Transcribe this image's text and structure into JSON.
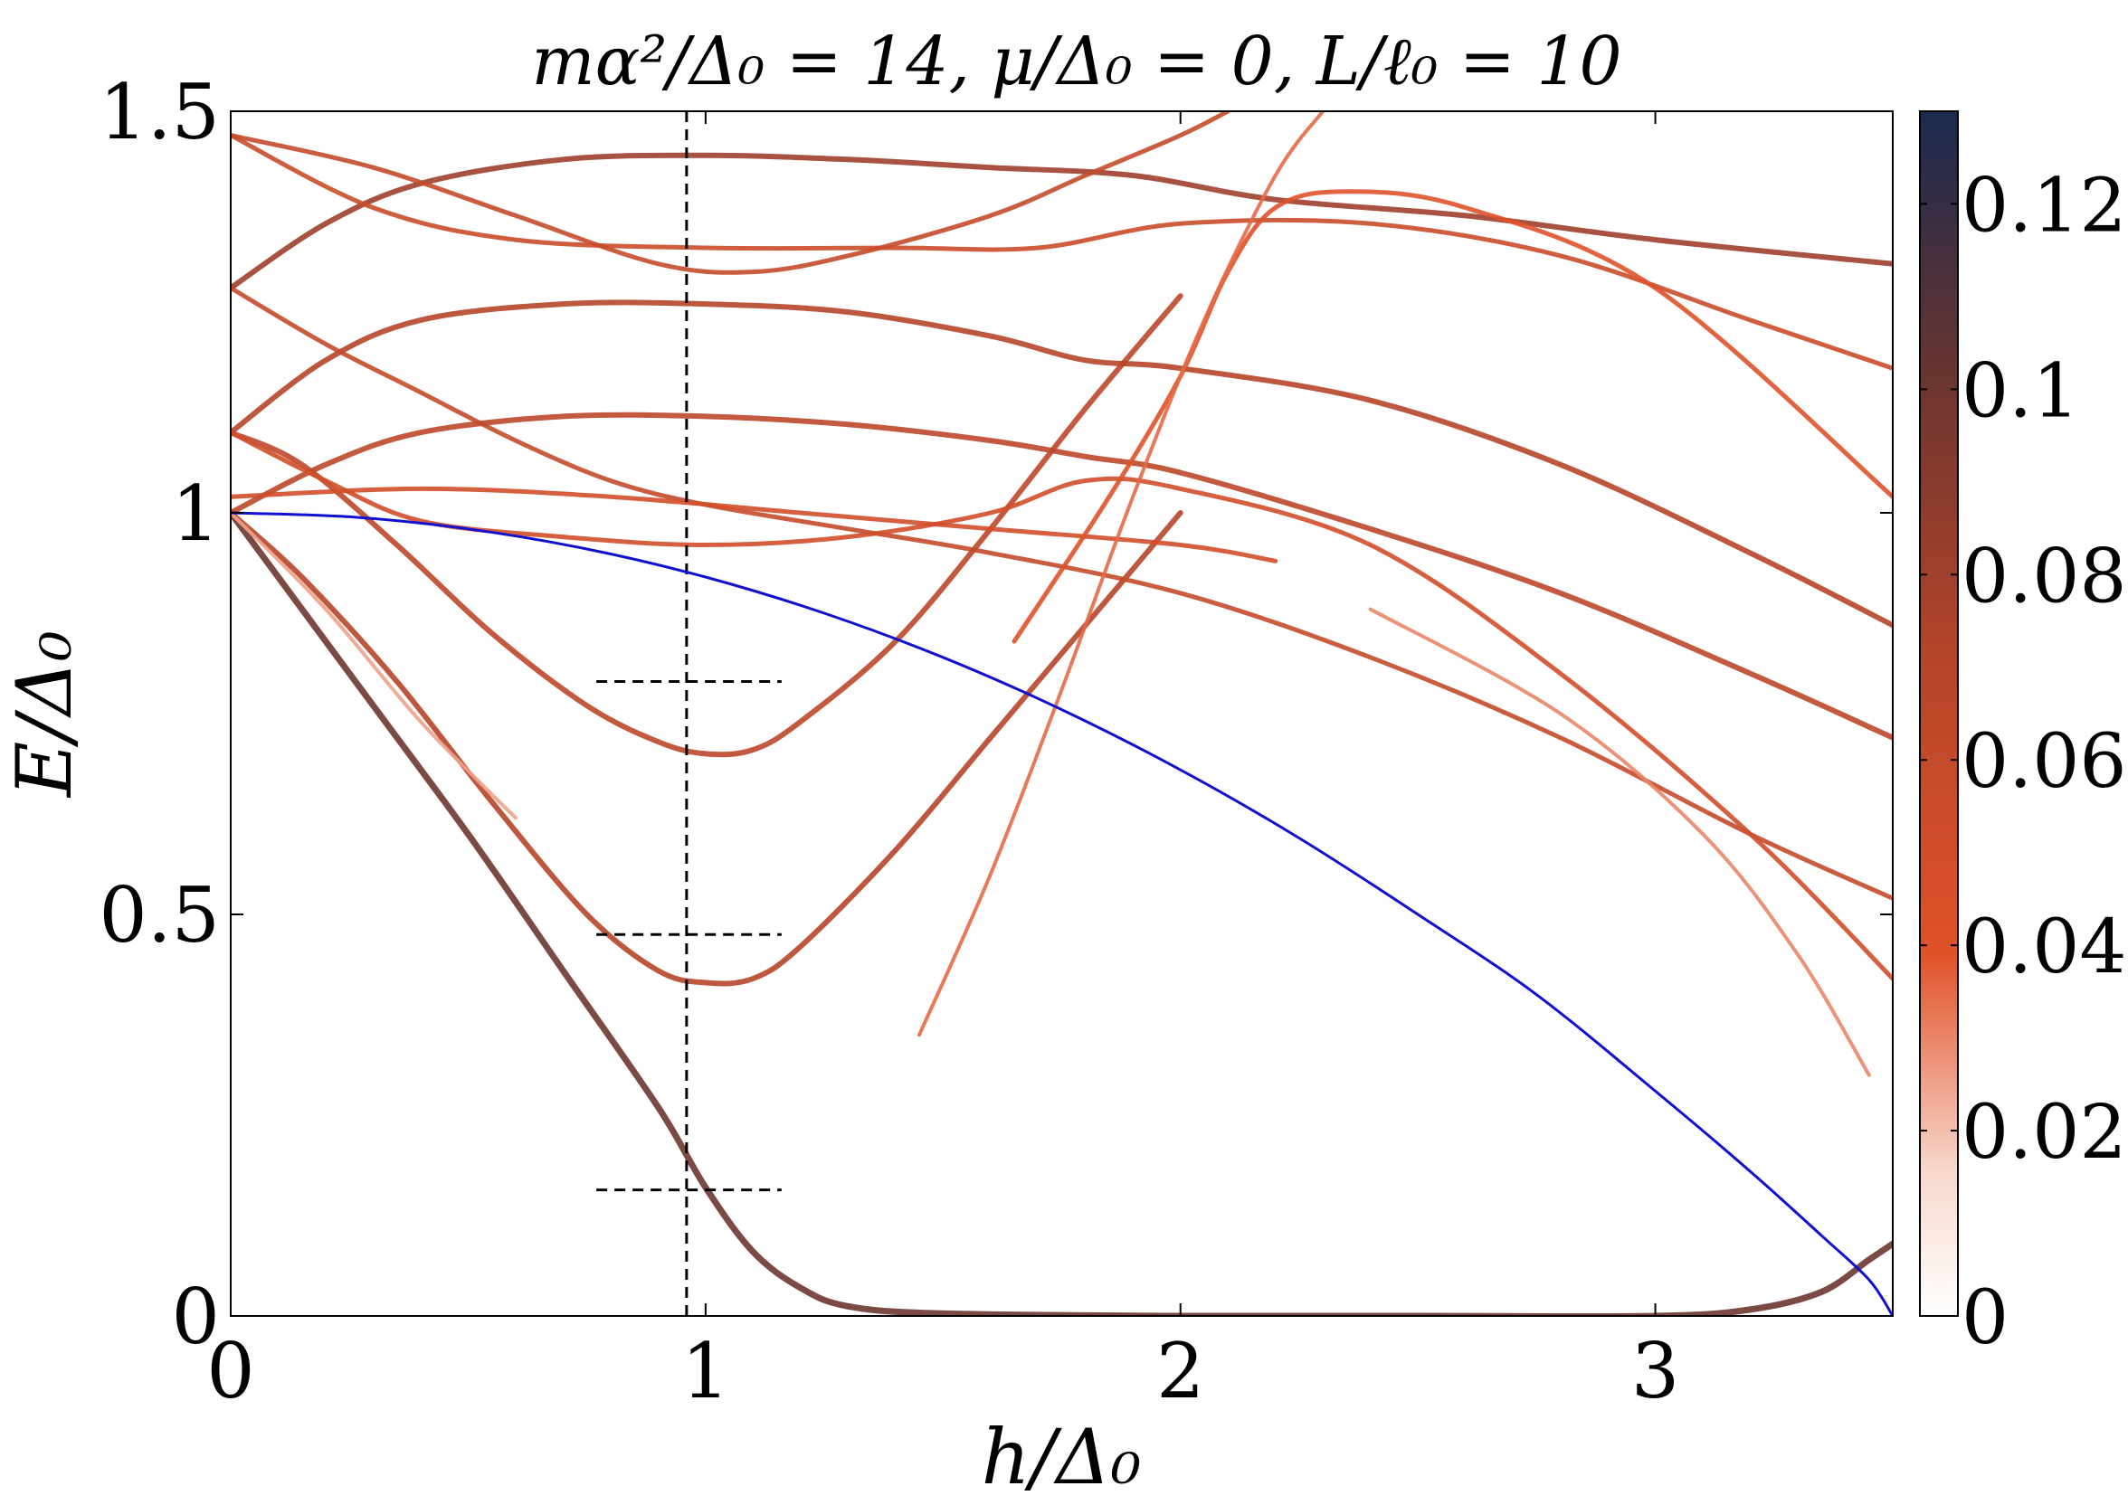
{
  "chart_data": {
    "type": "heatmap",
    "title": "mα²/Δ₀ = 14, μ/Δ₀ = 0, L/ℓ₀ = 10",
    "xlabel": "h/Δ₀",
    "ylabel": "E/Δ₀",
    "xlim": [
      0,
      3.5
    ],
    "ylim": [
      0,
      1.5
    ],
    "xticks": [
      {
        "value": 0,
        "label": "0"
      },
      {
        "value": 1,
        "label": "1"
      },
      {
        "value": 2,
        "label": "2"
      },
      {
        "value": 3,
        "label": "3"
      }
    ],
    "yticks": [
      {
        "value": 0,
        "label": "0"
      },
      {
        "value": 0.5,
        "label": "0.5"
      },
      {
        "value": 1,
        "label": "1"
      },
      {
        "value": 1.5,
        "label": "1.5"
      }
    ],
    "colorbar": {
      "min": 0,
      "max": 0.13,
      "ticks": [
        {
          "value": 0,
          "label": "0"
        },
        {
          "value": 0.02,
          "label": "0.02"
        },
        {
          "value": 0.04,
          "label": "0.04"
        },
        {
          "value": 0.06,
          "label": "0.06"
        },
        {
          "value": 0.08,
          "label": "0.08"
        },
        {
          "value": 0.1,
          "label": "0.1"
        },
        {
          "value": 0.12,
          "label": "0.12"
        }
      ],
      "colors": [
        "#ffffff",
        "#e0522a",
        "#1a2a4f"
      ]
    },
    "gap_curve": {
      "color": "#1010d0",
      "h_max": 3.5,
      "points": [
        [
          0,
          1.0
        ],
        [
          0.25,
          0.995
        ],
        [
          0.5,
          0.98
        ],
        [
          0.75,
          0.955
        ],
        [
          1.0,
          0.92
        ],
        [
          1.25,
          0.875
        ],
        [
          1.5,
          0.82
        ],
        [
          1.75,
          0.755
        ],
        [
          2.0,
          0.68
        ],
        [
          2.25,
          0.595
        ],
        [
          2.5,
          0.5
        ],
        [
          2.75,
          0.4
        ],
        [
          3.0,
          0.28
        ],
        [
          3.2,
          0.18
        ],
        [
          3.35,
          0.1
        ],
        [
          3.45,
          0.045
        ],
        [
          3.5,
          0.0
        ]
      ]
    },
    "reference_lines": {
      "vertical_x": 0.96,
      "horizontal": [
        {
          "y": 0.79,
          "x_from": 0.77,
          "x_to": 1.16
        },
        {
          "y": 0.475,
          "x_from": 0.77,
          "x_to": 1.16
        },
        {
          "y": 0.157,
          "x_from": 0.77,
          "x_to": 1.16
        }
      ]
    },
    "bands": [
      {
        "name": "b1",
        "intensity": 0.1,
        "width": 7,
        "points": [
          [
            0,
            1.0
          ],
          [
            0.1,
            0.92
          ],
          [
            0.3,
            0.76
          ],
          [
            0.5,
            0.6
          ],
          [
            0.7,
            0.43
          ],
          [
            0.9,
            0.26
          ],
          [
            1.0,
            0.16
          ],
          [
            1.1,
            0.08
          ],
          [
            1.2,
            0.035
          ],
          [
            1.3,
            0.012
          ],
          [
            1.5,
            0.003
          ],
          [
            2.0,
            0.0
          ],
          [
            2.5,
            0.0
          ],
          [
            3.0,
            0.0
          ],
          [
            3.2,
            0.008
          ],
          [
            3.35,
            0.03
          ],
          [
            3.45,
            0.07
          ],
          [
            3.5,
            0.09
          ]
        ]
      },
      {
        "name": "b2",
        "intensity": 0.07,
        "width": 6,
        "points": [
          [
            0,
            1.0
          ],
          [
            0.15,
            0.92
          ],
          [
            0.35,
            0.79
          ],
          [
            0.55,
            0.64
          ],
          [
            0.75,
            0.5
          ],
          [
            0.9,
            0.43
          ],
          [
            1.0,
            0.415
          ],
          [
            1.1,
            0.42
          ],
          [
            1.2,
            0.46
          ],
          [
            1.4,
            0.58
          ],
          [
            1.6,
            0.72
          ],
          [
            1.8,
            0.86
          ],
          [
            2.0,
            1.0
          ]
        ]
      },
      {
        "name": "b3",
        "intensity": 0.065,
        "width": 6,
        "points": [
          [
            0,
            1.1
          ],
          [
            0.15,
            1.06
          ],
          [
            0.35,
            0.96
          ],
          [
            0.55,
            0.85
          ],
          [
            0.75,
            0.76
          ],
          [
            0.9,
            0.715
          ],
          [
            1.0,
            0.7
          ],
          [
            1.1,
            0.705
          ],
          [
            1.2,
            0.74
          ],
          [
            1.4,
            0.84
          ],
          [
            1.6,
            0.98
          ],
          [
            1.8,
            1.13
          ],
          [
            2.0,
            1.27
          ]
        ]
      },
      {
        "name": "b4",
        "intensity": 0.065,
        "width": 6,
        "points": [
          [
            0,
            1.0
          ],
          [
            0.2,
            1.06
          ],
          [
            0.4,
            1.1
          ],
          [
            0.7,
            1.12
          ],
          [
            1.0,
            1.12
          ],
          [
            1.3,
            1.11
          ],
          [
            1.6,
            1.09
          ],
          [
            1.8,
            1.07
          ],
          [
            2.0,
            1.05
          ],
          [
            2.4,
            0.98
          ],
          [
            2.8,
            0.9
          ],
          [
            3.2,
            0.8
          ],
          [
            3.5,
            0.72
          ]
        ]
      },
      {
        "name": "b5",
        "intensity": 0.07,
        "width": 6,
        "points": [
          [
            0,
            1.1
          ],
          [
            0.2,
            1.19
          ],
          [
            0.4,
            1.24
          ],
          [
            0.7,
            1.26
          ],
          [
            1.0,
            1.26
          ],
          [
            1.3,
            1.25
          ],
          [
            1.6,
            1.22
          ],
          [
            1.8,
            1.19
          ],
          [
            2.0,
            1.18
          ],
          [
            2.4,
            1.14
          ],
          [
            2.8,
            1.06
          ],
          [
            3.2,
            0.95
          ],
          [
            3.5,
            0.86
          ]
        ]
      },
      {
        "name": "b6",
        "intensity": 0.08,
        "width": 6,
        "points": [
          [
            0,
            1.28
          ],
          [
            0.2,
            1.36
          ],
          [
            0.4,
            1.41
          ],
          [
            0.7,
            1.44
          ],
          [
            1.0,
            1.445
          ],
          [
            1.3,
            1.44
          ],
          [
            1.6,
            1.43
          ],
          [
            1.9,
            1.42
          ],
          [
            2.2,
            1.39
          ],
          [
            2.6,
            1.37
          ],
          [
            3.0,
            1.34
          ],
          [
            3.5,
            1.31
          ]
        ]
      },
      {
        "name": "b7",
        "intensity": 0.06,
        "width": 5,
        "points": [
          [
            0,
            1.47
          ],
          [
            0.3,
            1.43
          ],
          [
            0.6,
            1.37
          ],
          [
            0.9,
            1.31
          ],
          [
            1.1,
            1.3
          ],
          [
            1.3,
            1.32
          ],
          [
            1.6,
            1.37
          ],
          [
            1.8,
            1.42
          ],
          [
            2.0,
            1.47
          ],
          [
            2.1,
            1.5
          ]
        ]
      },
      {
        "name": "b8",
        "intensity": 0.06,
        "width": 5,
        "points": [
          [
            0,
            1.28
          ],
          [
            0.2,
            1.21
          ],
          [
            0.4,
            1.15
          ],
          [
            0.6,
            1.09
          ],
          [
            0.8,
            1.04
          ],
          [
            1.0,
            1.01
          ],
          [
            1.3,
            0.98
          ],
          [
            1.6,
            0.95
          ],
          [
            2.0,
            0.9
          ],
          [
            2.4,
            0.82
          ],
          [
            2.8,
            0.72
          ],
          [
            3.2,
            0.6
          ],
          [
            3.5,
            0.52
          ]
        ]
      },
      {
        "name": "b9",
        "intensity": 0.05,
        "width": 5,
        "points": [
          [
            0,
            1.1
          ],
          [
            0.2,
            1.04
          ],
          [
            0.4,
            0.99
          ],
          [
            0.7,
            0.97
          ],
          [
            1.0,
            0.96
          ],
          [
            1.3,
            0.97
          ],
          [
            1.6,
            1.0
          ],
          [
            1.8,
            1.04
          ],
          [
            2.0,
            1.03
          ],
          [
            2.4,
            0.96
          ],
          [
            2.8,
            0.8
          ],
          [
            3.2,
            0.6
          ],
          [
            3.5,
            0.42
          ]
        ]
      },
      {
        "name": "b10",
        "intensity": 0.055,
        "width": 5,
        "points": [
          [
            0,
            1.47
          ],
          [
            0.3,
            1.38
          ],
          [
            0.6,
            1.34
          ],
          [
            1.0,
            1.33
          ],
          [
            1.4,
            1.33
          ],
          [
            1.7,
            1.33
          ],
          [
            2.0,
            1.36
          ],
          [
            2.4,
            1.36
          ],
          [
            2.8,
            1.32
          ],
          [
            3.2,
            1.24
          ],
          [
            3.5,
            1.18
          ]
        ]
      },
      {
        "name": "b11",
        "intensity": 0.05,
        "width": 5,
        "points": [
          [
            0,
            1.02
          ],
          [
            0.4,
            1.03
          ],
          [
            0.8,
            1.02
          ],
          [
            1.2,
            1.0
          ],
          [
            1.6,
            0.98
          ],
          [
            2.0,
            0.96
          ],
          [
            2.2,
            0.94
          ]
        ]
      },
      {
        "name": "b12",
        "intensity": 0.04,
        "width": 5,
        "points": [
          [
            1.65,
            0.84
          ],
          [
            1.85,
            1.02
          ],
          [
            2.0,
            1.17
          ],
          [
            2.1,
            1.3
          ],
          [
            2.2,
            1.38
          ],
          [
            2.35,
            1.4
          ],
          [
            2.6,
            1.38
          ],
          [
            3.0,
            1.28
          ],
          [
            3.5,
            1.02
          ]
        ]
      },
      {
        "name": "b13",
        "intensity": 0.025,
        "width": 4,
        "points": [
          [
            0,
            1.0
          ],
          [
            0.2,
            0.88
          ],
          [
            0.4,
            0.74
          ],
          [
            0.6,
            0.62
          ]
        ]
      },
      {
        "name": "b14",
        "intensity": 0.035,
        "width": 4,
        "points": [
          [
            1.45,
            0.35
          ],
          [
            1.6,
            0.55
          ],
          [
            1.75,
            0.78
          ],
          [
            1.9,
            1.02
          ],
          [
            2.05,
            1.24
          ],
          [
            2.2,
            1.42
          ],
          [
            2.3,
            1.5
          ]
        ]
      },
      {
        "name": "b15",
        "intensity": 0.03,
        "width": 4,
        "points": [
          [
            2.4,
            0.88
          ],
          [
            2.8,
            0.75
          ],
          [
            3.1,
            0.6
          ],
          [
            3.3,
            0.45
          ],
          [
            3.45,
            0.3
          ]
        ]
      }
    ]
  }
}
